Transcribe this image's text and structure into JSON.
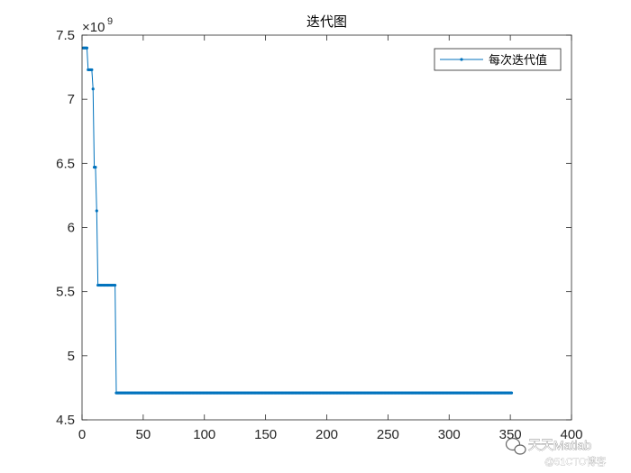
{
  "chart_data": {
    "type": "line",
    "title": "迭代图",
    "xlabel": "",
    "ylabel": "",
    "xlim": [
      0,
      400
    ],
    "ylim": [
      4.5,
      7.5
    ],
    "y_multiplier_label": "×10",
    "y_multiplier_exponent": "9",
    "xticks": [
      0,
      50,
      100,
      150,
      200,
      250,
      300,
      350,
      400
    ],
    "yticks": [
      4.5,
      5,
      5.5,
      6,
      6.5,
      7,
      7.5
    ],
    "xtick_labels": [
      "0",
      "50",
      "100",
      "150",
      "200",
      "250",
      "300",
      "350",
      "400"
    ],
    "ytick_labels": [
      "4.5",
      "5",
      "5.5",
      "6",
      "6.5",
      "7",
      "7.5"
    ],
    "grid": false,
    "legend_position": "top-right",
    "series": [
      {
        "name": "每次迭代值",
        "color": "#0072BD",
        "marker": "dot",
        "values_description": "y in units of 1e9 per iteration",
        "x": [
          1,
          2,
          3,
          4,
          5,
          6,
          7,
          8,
          9,
          10,
          11,
          12,
          13,
          14,
          15,
          16,
          17,
          18,
          19,
          20,
          21,
          22,
          23,
          24,
          25,
          26,
          27,
          28,
          29,
          30,
          351
        ],
        "y": [
          7.4,
          7.4,
          7.4,
          7.4,
          7.23,
          7.23,
          7.23,
          7.23,
          7.08,
          6.47,
          6.47,
          6.13,
          5.55,
          5.55,
          5.55,
          5.55,
          5.55,
          5.55,
          5.55,
          5.55,
          5.55,
          5.55,
          5.55,
          5.55,
          5.55,
          5.55,
          5.55,
          4.71,
          4.71,
          4.71,
          4.71
        ]
      }
    ]
  },
  "watermark": {
    "main": "天天Matlab",
    "sub": "@51CTO博客"
  },
  "colors": {
    "axes": "#262626",
    "line": "#0072BD"
  }
}
